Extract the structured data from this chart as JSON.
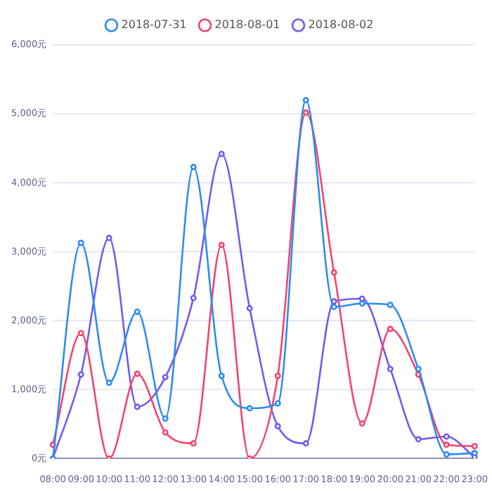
{
  "chart_data": {
    "type": "line",
    "categories": [
      "08:00",
      "09:00",
      "10:00",
      "11:00",
      "12:00",
      "13:00",
      "14:00",
      "15:00",
      "16:00",
      "17:00",
      "18:00",
      "19:00",
      "20:00",
      "21:00",
      "22:00",
      "23:00"
    ],
    "series": [
      {
        "name": "2018-07-31",
        "color": "#2d8cf0",
        "values": [
          0,
          3130,
          1100,
          2130,
          580,
          4230,
          1200,
          730,
          800,
          5200,
          2200,
          2250,
          2230,
          1300,
          60,
          80
        ]
      },
      {
        "name": "2018-08-01",
        "color": "#f5436c",
        "values": [
          200,
          1820,
          0,
          1230,
          380,
          220,
          3100,
          0,
          1200,
          5020,
          2700,
          510,
          1880,
          1220,
          200,
          180
        ]
      },
      {
        "name": "2018-08-02",
        "color": "#7559f0",
        "values": [
          0,
          1220,
          3200,
          750,
          1180,
          2330,
          4420,
          2180,
          470,
          220,
          2280,
          2320,
          1300,
          280,
          320,
          20
        ]
      }
    ],
    "ylim": [
      0,
      6000
    ],
    "yticks": [
      {
        "value": 0,
        "label": "0元"
      },
      {
        "value": 1000,
        "label": "1,000元"
      },
      {
        "value": 2000,
        "label": "2,000元"
      },
      {
        "value": 3000,
        "label": "3,000元"
      },
      {
        "value": 4000,
        "label": "4,000元"
      },
      {
        "value": 5000,
        "label": "5,000元"
      },
      {
        "value": 6000,
        "label": "6,000元"
      }
    ],
    "grid": "y",
    "legend": "top",
    "marker": "circle",
    "line_style": "solid"
  }
}
